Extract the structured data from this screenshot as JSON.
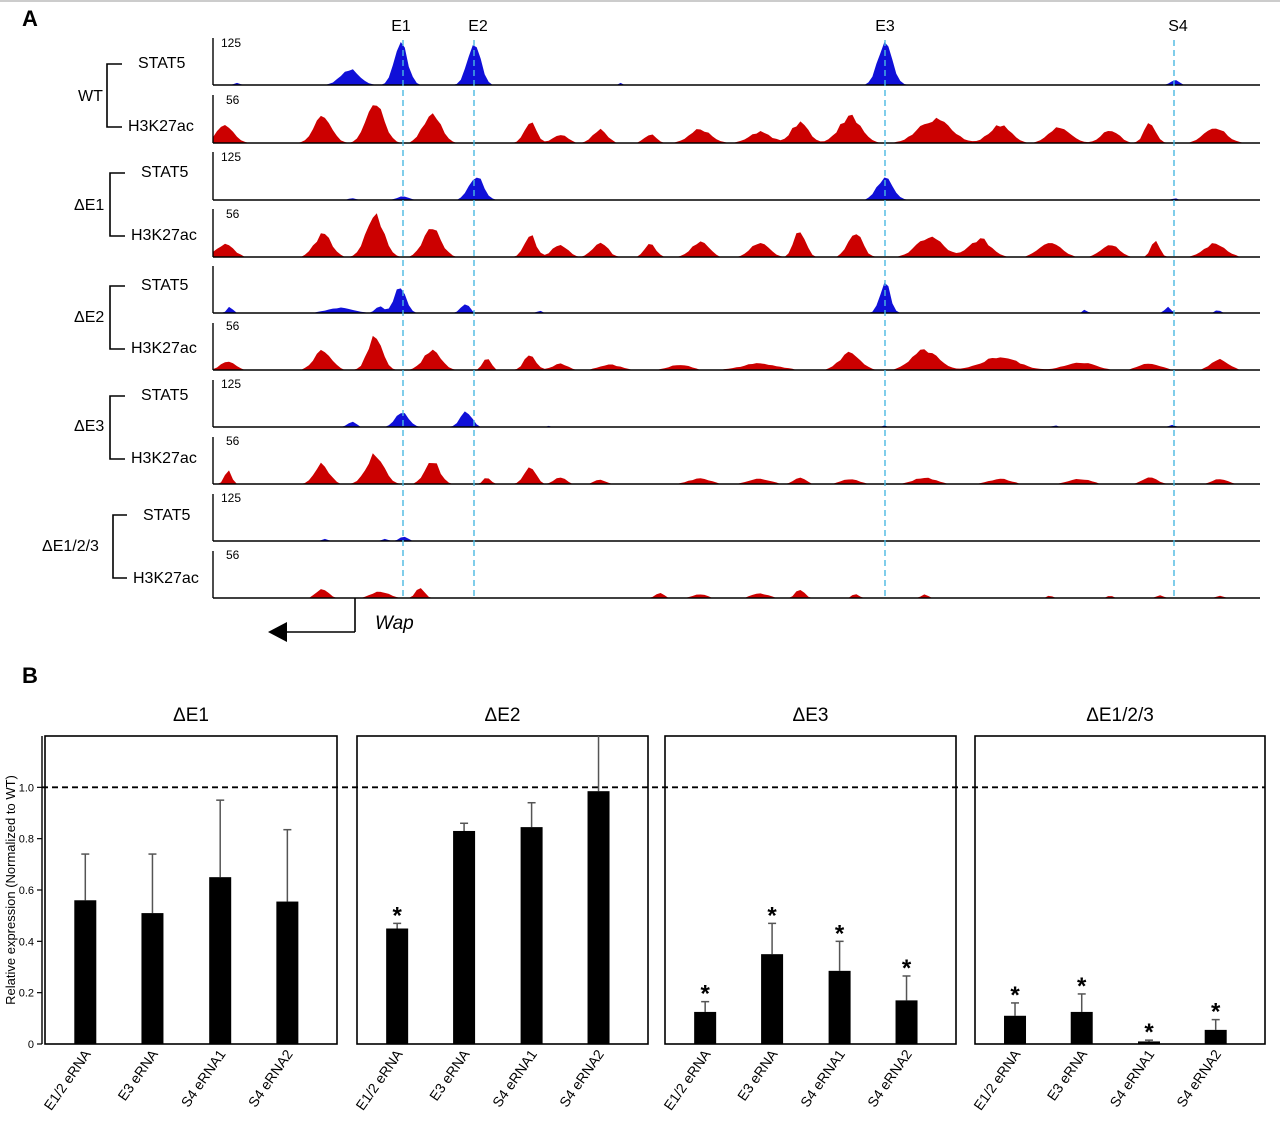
{
  "panel_a": {
    "letter": "A",
    "peak_labels": [
      "E1",
      "E2",
      "E3",
      "S4"
    ],
    "gene": "Wap",
    "colors": {
      "stat5": "#1010d8",
      "h3k27ac": "#cc0000",
      "guide": "#4ab8e0"
    },
    "groups": [
      {
        "label": "WT",
        "tracks": [
          {
            "name": "STAT5",
            "max": "125"
          },
          {
            "name": "H3K27ac",
            "max": "56"
          }
        ]
      },
      {
        "label": "ΔE1",
        "tracks": [
          {
            "name": "STAT5",
            "max": "125"
          },
          {
            "name": "H3K27ac",
            "max": "56"
          }
        ]
      },
      {
        "label": "ΔE2",
        "tracks": [
          {
            "name": "STAT5",
            "max": ""
          },
          {
            "name": "H3K27ac",
            "max": "56"
          }
        ]
      },
      {
        "label": "ΔE3",
        "tracks": [
          {
            "name": "STAT5",
            "max": "125"
          },
          {
            "name": "H3K27ac",
            "max": "56"
          }
        ]
      },
      {
        "label": "ΔE1/2/3",
        "tracks": [
          {
            "name": "STAT5",
            "max": "125"
          },
          {
            "name": "H3K27ac",
            "max": "56"
          }
        ]
      }
    ]
  },
  "panel_b": {
    "letter": "B",
    "chart_data": {
      "type": "bar",
      "ylabel": "Relative expression (Normalized to WT)",
      "ylim": [
        0,
        1.2
      ],
      "yticks": [
        "0",
        "0.2",
        "0.4",
        "0.6",
        "0.8",
        "1.0"
      ],
      "reference_line": 1.0,
      "categories": [
        "E1/2 eRNA",
        "E3 eRNA",
        "S4 eRNA1",
        "S4 eRNA2"
      ],
      "series": [
        {
          "name": "ΔE1",
          "values": [
            0.56,
            0.51,
            0.65,
            0.555
          ],
          "errors": [
            0.18,
            0.23,
            0.3,
            0.28
          ],
          "significant": [
            false,
            false,
            false,
            false
          ]
        },
        {
          "name": "ΔE2",
          "values": [
            0.45,
            0.83,
            0.845,
            0.985
          ],
          "errors": [
            0.02,
            0.03,
            0.095,
            0.22
          ],
          "significant": [
            true,
            false,
            false,
            false
          ]
        },
        {
          "name": "ΔE3",
          "values": [
            0.125,
            0.35,
            0.285,
            0.17
          ],
          "errors": [
            0.04,
            0.12,
            0.115,
            0.095
          ],
          "significant": [
            true,
            true,
            true,
            true
          ]
        },
        {
          "name": "ΔE1/2/3",
          "values": [
            0.11,
            0.125,
            0.01,
            0.055
          ],
          "errors": [
            0.05,
            0.07,
            0.005,
            0.04
          ],
          "significant": [
            true,
            true,
            true,
            true
          ]
        }
      ],
      "significance_marker": "*"
    }
  }
}
